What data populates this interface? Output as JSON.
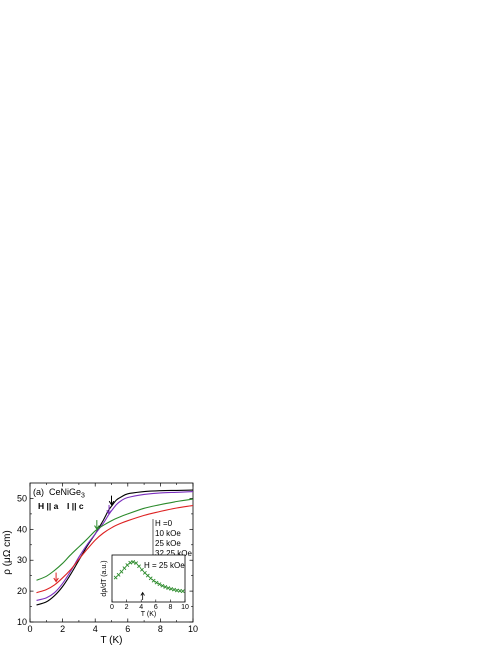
{
  "chart_data": [
    {
      "type": "line",
      "panel_label": "(a)",
      "compound": "CeNiGe",
      "compound_sub": "3",
      "orientation": {
        "field": "H || a",
        "current": "I || c"
      },
      "xlabel": "T (K)",
      "ylabel": "ρ (μΩ cm)",
      "xlim": [
        0,
        10
      ],
      "ylim": [
        10,
        55
      ],
      "xticks": [
        "0",
        "2",
        "4",
        "6",
        "8",
        "10"
      ],
      "yticks": [
        "10",
        "20",
        "30",
        "40",
        "50"
      ],
      "legend": {
        "title": "H =0",
        "entries": [
          "10 kOe",
          "25 kOe",
          "32.25 kOe"
        ]
      },
      "series": [
        {
          "name": "H =0",
          "color": "#000000",
          "x": [
            0.4,
            1,
            1.5,
            2,
            2.5,
            3,
            3.5,
            4,
            4.5,
            4.8,
            5,
            5.3,
            5.6,
            6,
            7,
            8,
            9,
            10
          ],
          "y": [
            15.5,
            16.5,
            18.5,
            21.5,
            25.5,
            30,
            34.5,
            38.5,
            43,
            46,
            47.5,
            49.5,
            50.5,
            51.5,
            52.2,
            52.5,
            52.6,
            52.7
          ]
        },
        {
          "name": "10 kOe",
          "color": "#7b2fbe",
          "x": [
            0.4,
            1,
            1.5,
            2,
            2.5,
            3,
            3.5,
            4,
            4.5,
            4.8,
            5,
            5.3,
            5.6,
            6,
            7,
            8,
            9,
            10
          ],
          "y": [
            17,
            17.8,
            19.5,
            22.5,
            26.5,
            31,
            35,
            38.5,
            42,
            44.5,
            46,
            48,
            49.3,
            50.3,
            51.3,
            51.8,
            52,
            52.2
          ]
        },
        {
          "name": "25 kOe",
          "color": "#dd2222",
          "x": [
            0.4,
            1,
            1.5,
            2,
            2.5,
            3,
            3.5,
            4,
            4.5,
            5,
            5.5,
            6,
            7,
            8,
            9,
            10
          ],
          "y": [
            19.5,
            20.5,
            22,
            24.3,
            27,
            30.3,
            33.5,
            36.5,
            38.8,
            40.5,
            41.8,
            42.8,
            44.5,
            45.8,
            46.9,
            47.7
          ]
        },
        {
          "name": "32.25 kOe",
          "color": "#2b8a2b",
          "x": [
            0.4,
            1,
            1.5,
            2,
            2.5,
            3,
            3.5,
            4,
            4.5,
            5,
            5.5,
            6,
            7,
            8,
            9,
            10
          ],
          "y": [
            23.5,
            24.8,
            26.7,
            29,
            31.8,
            34.3,
            36.8,
            39.5,
            41.3,
            42.8,
            44,
            45,
            46.8,
            48,
            49,
            49.8
          ]
        }
      ],
      "arrows": [
        {
          "color": "#000000",
          "x": 5.0,
          "y": 47.5
        },
        {
          "color": "#7b2fbe",
          "x": 4.85,
          "y": 44.5
        },
        {
          "color": "#2b8a2b",
          "x": 4.1,
          "y": 39.6
        },
        {
          "color": "#dd2222",
          "x": 1.6,
          "y": 22.6
        }
      ]
    },
    {
      "type": "scatter",
      "role": "inset",
      "label": "H = 25 kOe",
      "xlabel": "T (K)",
      "ylabel": "dρ/dT (a.u.)",
      "xlim": [
        0,
        10
      ],
      "xticks": [
        "0",
        "2",
        "4",
        "6",
        "8",
        "10"
      ],
      "ylim": [
        0,
        1
      ],
      "color": "#2b8a2b",
      "x": [
        0.5,
        0.9,
        1.3,
        1.7,
        2.1,
        2.5,
        2.9,
        3.3,
        3.7,
        4.1,
        4.5,
        4.9,
        5.3,
        5.7,
        6.1,
        6.5,
        6.9,
        7.3,
        7.7,
        8.1,
        8.5,
        8.9,
        9.3,
        9.7
      ],
      "y": [
        0.55,
        0.62,
        0.7,
        0.79,
        0.87,
        0.93,
        0.95,
        0.92,
        0.84,
        0.75,
        0.67,
        0.6,
        0.53,
        0.47,
        0.42,
        0.38,
        0.34,
        0.31,
        0.28,
        0.26,
        0.24,
        0.22,
        0.21,
        0.2
      ],
      "arrow_x": 4.2
    }
  ]
}
